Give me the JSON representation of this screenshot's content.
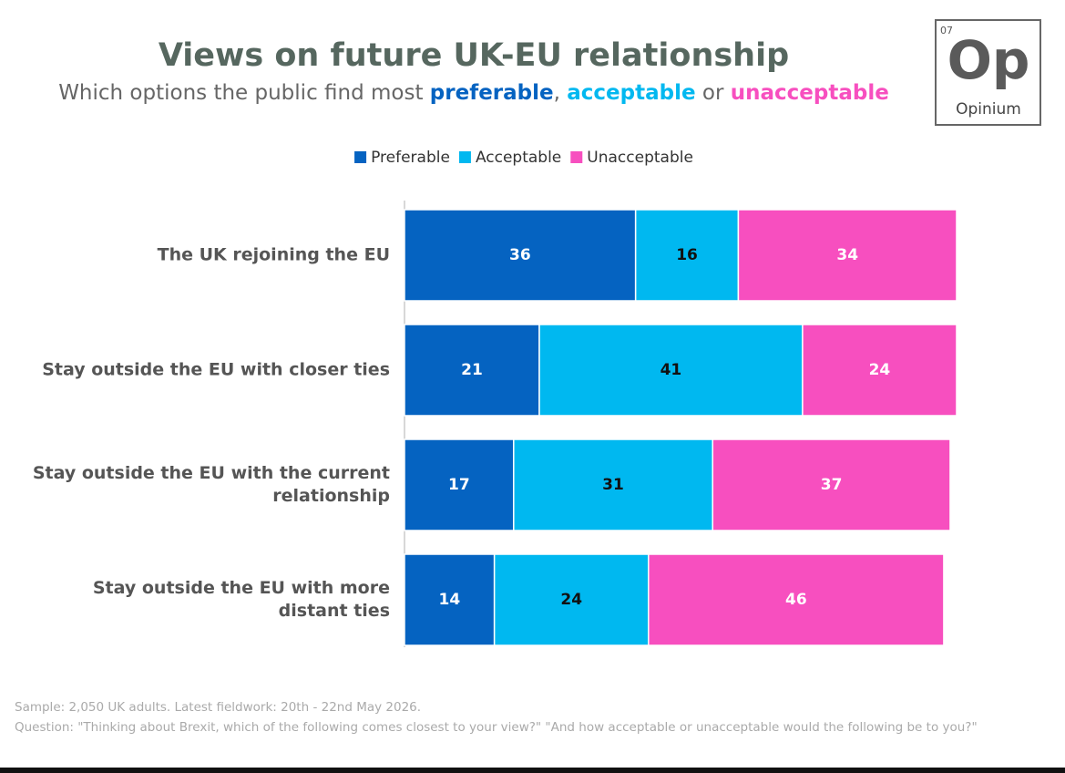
{
  "chart_data": {
    "type": "stacked-bar",
    "orientation": "horizontal",
    "title": "Views on future UK-EU relationship",
    "subtitle": [
      {
        "text": "Which options the public find most ",
        "color": "#666666"
      },
      {
        "text": "preferable",
        "color": "#0563c1",
        "bold": true
      },
      {
        "text": ", ",
        "color": "#666666"
      },
      {
        "text": "acceptable",
        "color": "#00b8f0",
        "bold": true
      },
      {
        "text": " or ",
        "color": "#666666"
      },
      {
        "text": "unacceptable",
        "color": "#f74fbf",
        "bold": true
      }
    ],
    "logo": {
      "number": "07",
      "symbol": "Op",
      "name": "Opinium"
    },
    "categories": [
      "The UK rejoining the EU",
      "Stay outside the EU with closer ties",
      "Stay outside the EU with the current relationship",
      "Stay outside the EU with more distant ties"
    ],
    "series": [
      {
        "name": "Preferable",
        "color": "#0563c1",
        "label_color": "#ffffff",
        "values": [
          36,
          21,
          17,
          14
        ]
      },
      {
        "name": "Acceptable",
        "color": "#00b8f0",
        "label_color": "#111111",
        "values": [
          16,
          41,
          31,
          24
        ]
      },
      {
        "name": "Unacceptable",
        "color": "#f74fbf",
        "label_color": "#ffffff",
        "values": [
          34,
          24,
          37,
          46
        ]
      }
    ],
    "xlim": [
      0,
      86
    ],
    "legend": "top",
    "notes": [
      "Sample: 2,050 UK adults. Latest fieldwork: 20th - 22nd May 2026.",
      "Question: \"Thinking about Brexit, which of the following comes closest to your view?\" \"And how acceptable or unacceptable would the following be to you?\""
    ]
  }
}
